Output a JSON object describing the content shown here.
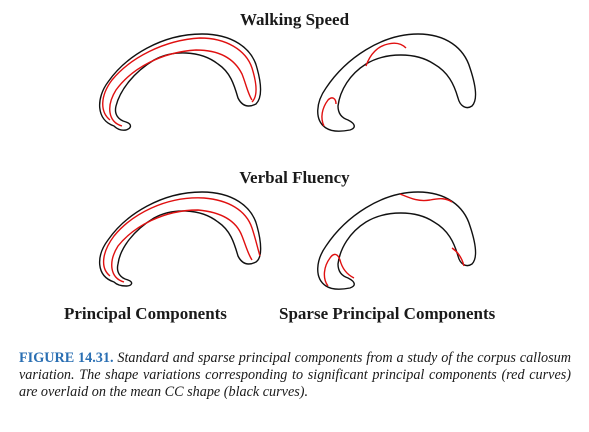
{
  "figure": {
    "row_titles": [
      "Walking Speed",
      "Verbal Fluency"
    ],
    "column_labels": [
      "Principal Components",
      "Sparse Principal Components"
    ],
    "caption_label": "FIGURE 14.31.",
    "caption_text": "Standard and sparse principal components from a study of the corpus callosum variation. The shape variations corresponding to significant principal components (red curves) are overlaid on the mean CC shape (black curves).",
    "colors": {
      "mean_shape": "#111111",
      "variation": "#e01010",
      "figure_label": "#2a6fb3"
    }
  }
}
